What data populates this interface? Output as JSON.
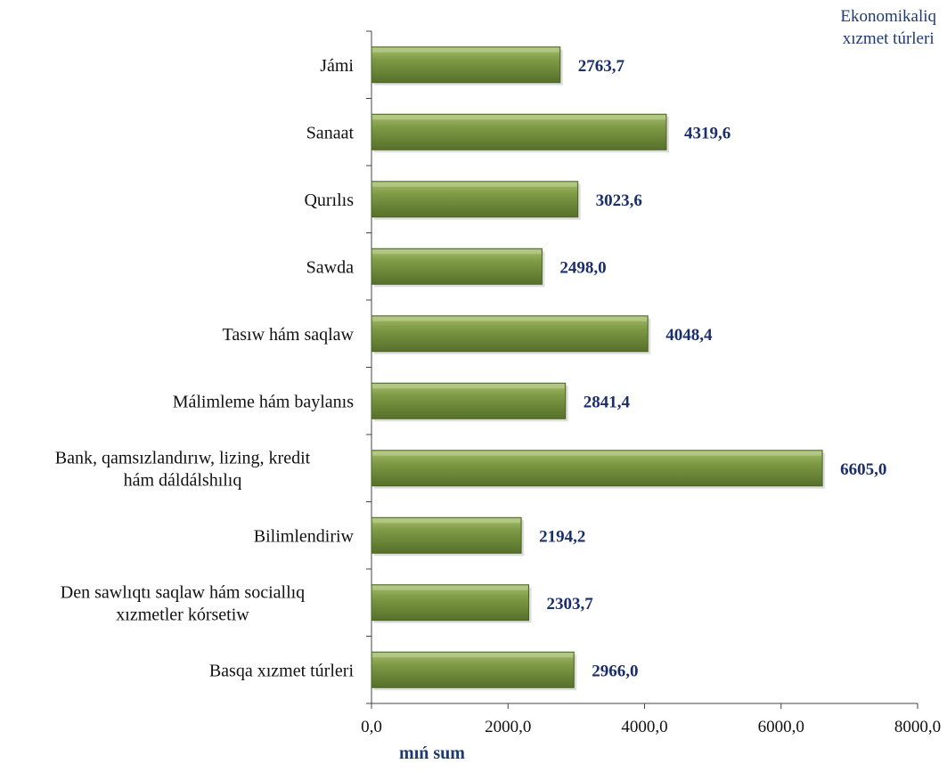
{
  "chart_data": {
    "type": "bar",
    "orientation": "horizontal",
    "title": "Ekonomikaliq\nxızmet túrleri",
    "xlabel": "mıń sum",
    "ylabel": "",
    "xlim": [
      0,
      8000
    ],
    "xticks": [
      "0,0",
      "2000,0",
      "4000,0",
      "6000,0",
      "8000,0"
    ],
    "categories": [
      "Jámi",
      "Sanaat",
      "Qurılıs",
      "Sawda",
      "Tasıw hám saqlaw",
      "Málimleme hám baylanıs",
      "Bank, qamsızlandırıw, lizing, kredit\nhám dáldálshılıq",
      "Bilimlendiriw",
      "Den sawlıqtı saqlaw  hám sociallıq\nxızmetler kórsetiw",
      "Basqa xızmet túrleri"
    ],
    "values": [
      2763.7,
      4319.6,
      3023.6,
      2498.0,
      4048.4,
      2841.4,
      6605.0,
      2194.2,
      2303.7,
      2966.0
    ],
    "value_labels": [
      "2763,7",
      "4319,6",
      "3023,6",
      "2498,0",
      "4048,4",
      "2841,4",
      "6605,0",
      "2194,2",
      "2303,7",
      "2966,0"
    ],
    "bar_color": "#76923c",
    "value_label_color": "#1a2e6c",
    "grid": false,
    "legend": "none"
  }
}
